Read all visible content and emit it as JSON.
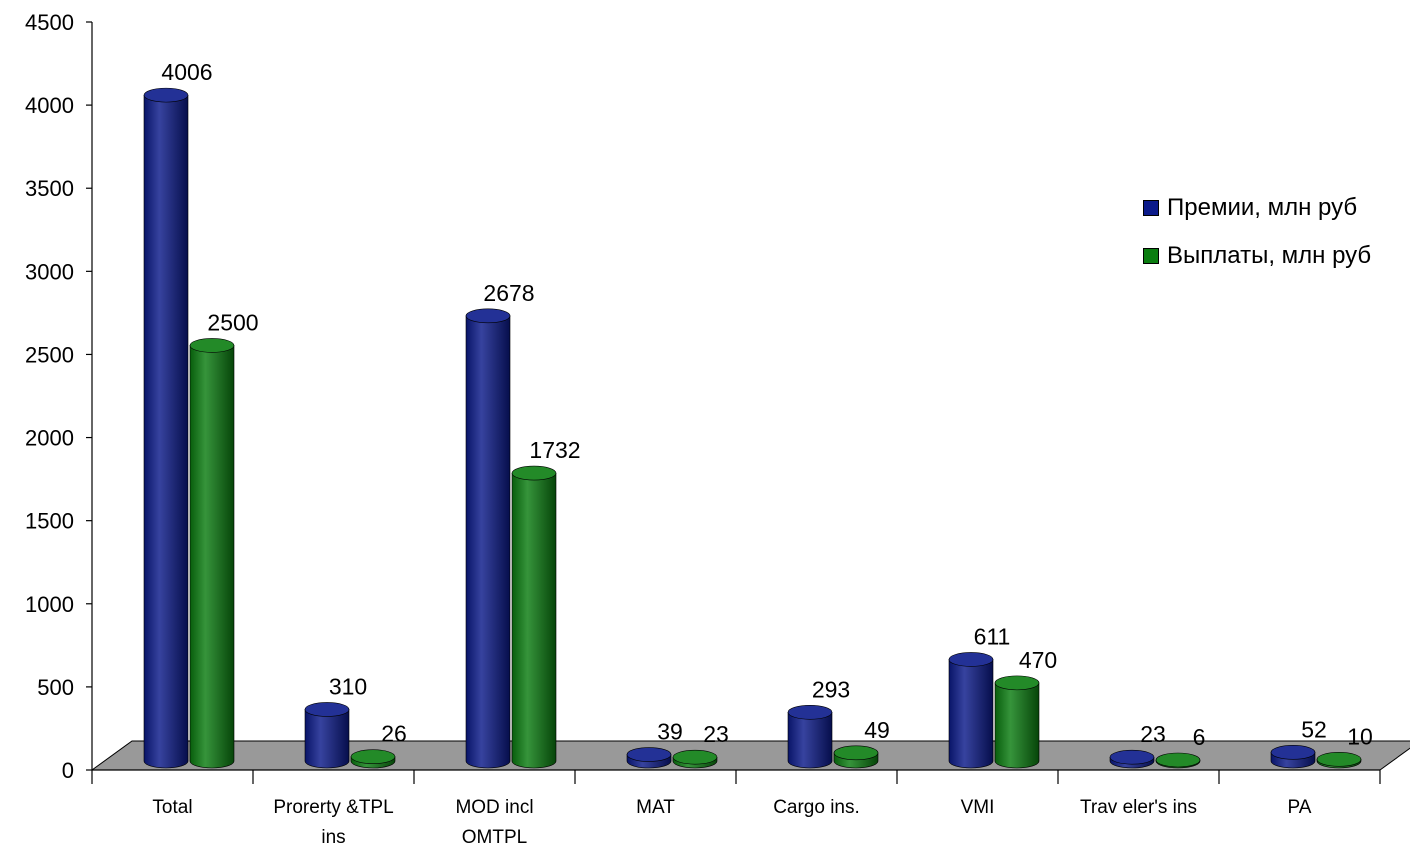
{
  "chart_data": {
    "type": "bar",
    "categories": [
      [
        "Total"
      ],
      [
        "Prorerty &TPL",
        "ins"
      ],
      [
        "MOD  incl",
        "OMTPL"
      ],
      [
        "MAT"
      ],
      [
        "Cargo ins."
      ],
      [
        "VMI"
      ],
      [
        "Trav eler's ins"
      ],
      [
        "PA"
      ]
    ],
    "series": [
      {
        "name": "Премии, млн руб",
        "values": [
          4006,
          310,
          2678,
          39,
          293,
          611,
          23,
          52
        ],
        "color": "#0b1a8a"
      },
      {
        "name": "Выплаты, млн руб",
        "values": [
          2500,
          26,
          1732,
          23,
          49,
          470,
          6,
          10
        ],
        "color": "#0a7d10"
      }
    ],
    "y_ticks": [
      0,
      500,
      1000,
      1500,
      2000,
      2500,
      3000,
      3500,
      4000,
      4500
    ],
    "ylim": [
      0,
      4500
    ],
    "grid": false,
    "legend_position": "right",
    "floor_color": "#999999",
    "style": "3d-cylinder"
  }
}
